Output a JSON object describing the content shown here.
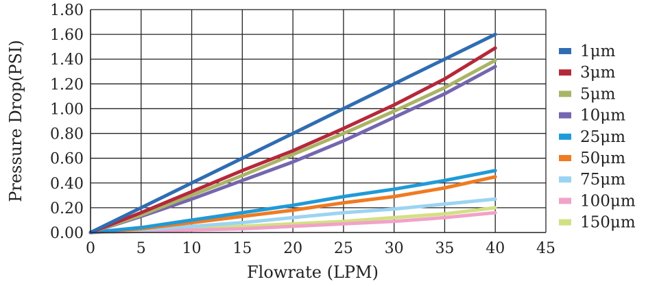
{
  "chart_data": {
    "type": "line",
    "xlabel": "Flowrate (LPM)",
    "ylabel": "Pressure Drop(PSI)",
    "xlim": [
      0,
      45
    ],
    "ylim": [
      0,
      1.8
    ],
    "x_ticks": [
      "0",
      "5",
      "10",
      "15",
      "20",
      "25",
      "30",
      "35",
      "40",
      "45"
    ],
    "y_ticks": [
      "0.00",
      "0.20",
      "0.40",
      "0.60",
      "0.80",
      "1.00",
      "1.20",
      "1.40",
      "1.60",
      "1.80"
    ],
    "grid": true,
    "legend_position": "right",
    "x": [
      0,
      5,
      10,
      15,
      20,
      25,
      30,
      35,
      40
    ],
    "series": [
      {
        "name": "1μm",
        "color": "#2f6db3",
        "values": [
          0,
          0.2,
          0.4,
          0.6,
          0.8,
          1.0,
          1.2,
          1.4,
          1.6
        ]
      },
      {
        "name": "3μm",
        "color": "#b5283a",
        "values": [
          0,
          0.16,
          0.33,
          0.5,
          0.66,
          0.84,
          1.03,
          1.24,
          1.49
        ]
      },
      {
        "name": "5μm",
        "color": "#a9b466",
        "values": [
          0,
          0.14,
          0.3,
          0.46,
          0.63,
          0.8,
          0.98,
          1.17,
          1.39
        ]
      },
      {
        "name": "10μm",
        "color": "#7566b0",
        "values": [
          0,
          0.13,
          0.27,
          0.42,
          0.57,
          0.74,
          0.93,
          1.12,
          1.34
        ]
      },
      {
        "name": "25μm",
        "color": "#1f9ad8",
        "values": [
          0,
          0.04,
          0.1,
          0.16,
          0.22,
          0.29,
          0.35,
          0.42,
          0.5
        ]
      },
      {
        "name": "50μm",
        "color": "#ef7b22",
        "values": [
          0,
          0.03,
          0.08,
          0.13,
          0.18,
          0.24,
          0.29,
          0.36,
          0.45
        ]
      },
      {
        "name": "75μm",
        "color": "#9bd4f2",
        "values": [
          0,
          0.02,
          0.05,
          0.08,
          0.12,
          0.16,
          0.19,
          0.23,
          0.27
        ]
      },
      {
        "name": "100μm",
        "color": "#f1a2c8",
        "values": [
          0,
          0.01,
          0.02,
          0.03,
          0.05,
          0.07,
          0.09,
          0.12,
          0.16
        ]
      },
      {
        "name": "150μm",
        "color": "#d3e082",
        "values": [
          0,
          0.01,
          0.03,
          0.05,
          0.07,
          0.09,
          0.12,
          0.15,
          0.2
        ]
      }
    ]
  }
}
